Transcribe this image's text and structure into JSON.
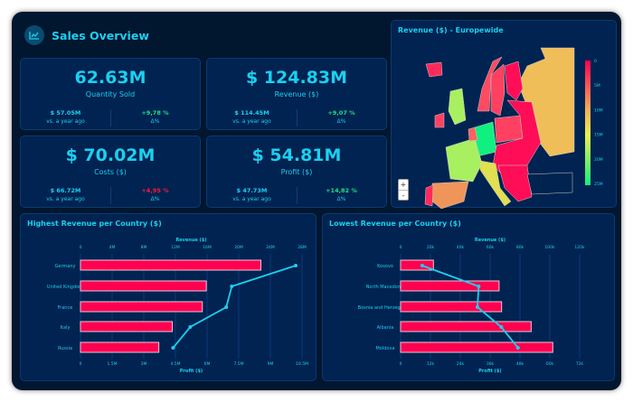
{
  "header": {
    "title": "Sales Overview",
    "icon": "line-chart-icon"
  },
  "kpis": [
    {
      "value": "62.63M",
      "label": "Quantity Sold",
      "prev": "$ 57.05M",
      "prev_label": "vs. a year ago",
      "delta": "+9,78 %",
      "delta_label": "Δ%",
      "delta_color": "#19e28a"
    },
    {
      "value": "$ 124.83M",
      "label": "Revenue ($)",
      "prev": "$ 114.45M",
      "prev_label": "vs. a year ago",
      "delta": "+9,07 %",
      "delta_label": "Δ%",
      "delta_color": "#19e28a"
    },
    {
      "value": "$ 70.02M",
      "label": "Costs ($)",
      "prev": "$ 66.72M",
      "prev_label": "vs. a year ago",
      "delta": "+4,95 %",
      "delta_label": "Δ%",
      "delta_color": "#ff1744"
    },
    {
      "value": "$ 54.81M",
      "label": "Profit ($)",
      "prev": "$ 47.73M",
      "prev_label": "vs. a year ago",
      "delta": "+14,82 %",
      "delta_label": "Δ%",
      "delta_color": "#19e28a"
    }
  ],
  "map": {
    "title": "Revenue ($) - Europewide",
    "colorbar_ticks": [
      "0",
      "5M",
      "10M",
      "15M",
      "20M",
      "25M"
    ],
    "zoom_in": "+",
    "zoom_out": "-"
  },
  "chart_data": [
    {
      "type": "bar",
      "title": "Highest Revenue per Country ($)",
      "categories": [
        "Germany",
        "United Kingdom",
        "France",
        "Italy",
        "Russia"
      ],
      "series": [
        {
          "name": "Revenue ($)",
          "type": "bar",
          "values": [
            22.8,
            15.9,
            15.4,
            11.6,
            9.9
          ],
          "color": "#ff0050"
        },
        {
          "name": "Profit ($)",
          "type": "line",
          "values": [
            10.2,
            7.17,
            6.91,
            5.2,
            4.39
          ],
          "color": "#1ad0f0"
        }
      ],
      "xlabel_top": "Revenue ($)",
      "xlabel_bottom": "Profit ($)",
      "unit": "M",
      "top_ticks": [
        "0",
        "4M",
        "8M",
        "12M",
        "16M",
        "20M",
        "24M",
        "28M"
      ],
      "top_lim": [
        0,
        28
      ],
      "bottom_ticks": [
        "0",
        "1.5M",
        "3M",
        "4.5M",
        "6M",
        "7.5M",
        "9M",
        "10.5M"
      ],
      "bottom_lim": [
        0,
        10.5
      ]
    },
    {
      "type": "bar",
      "title": "Lowest Revenue per Country ($)",
      "categories": [
        "Kosovo",
        "North Macedonia",
        "Bosnia and Herzegovina",
        "Albania",
        "Moldova"
      ],
      "series": [
        {
          "name": "Revenue ($)",
          "type": "bar",
          "values": [
            22,
            66,
            67.7,
            87.5,
            102
          ],
          "color": "#ff0050"
        },
        {
          "name": "Profit ($)",
          "type": "line",
          "values": [
            8.7,
            31.4,
            30.9,
            40.5,
            47.2
          ],
          "color": "#1ad0f0"
        }
      ],
      "xlabel_top": "Revenue ($)",
      "xlabel_bottom": "Profit ($)",
      "unit": "k",
      "top_ticks": [
        "0",
        "20k",
        "40k",
        "60k",
        "80k",
        "100k",
        "120k"
      ],
      "top_lim": [
        0,
        120
      ],
      "bottom_ticks": [
        "0",
        "12k",
        "24k",
        "36k",
        "48k",
        "60k",
        "72k"
      ],
      "bottom_lim": [
        0,
        72
      ]
    }
  ]
}
